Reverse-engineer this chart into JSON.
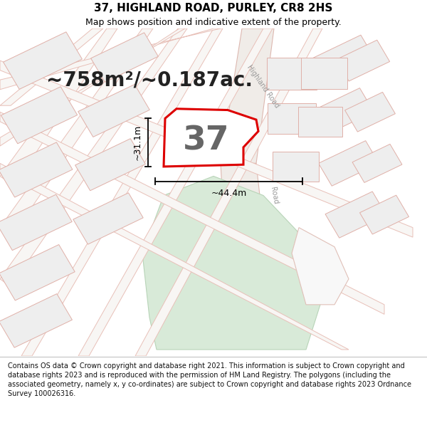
{
  "title": "37, HIGHLAND ROAD, PURLEY, CR8 2HS",
  "subtitle": "Map shows position and indicative extent of the property.",
  "area_text": "~758m²/~0.187ac.",
  "width_label": "~44.4m",
  "height_label": "~31.1m",
  "number_label": "37",
  "footer": "Contains OS data © Crown copyright and database right 2021. This information is subject to Crown copyright and database rights 2023 and is reproduced with the permission of HM Land Registry. The polygons (including the associated geometry, namely x, y co-ordinates) are subject to Crown copyright and database rights 2023 Ordnance Survey 100026316.",
  "map_bg": "#f8f7f5",
  "road_fill": "#f5f0ec",
  "road_edge": "#e8c0b8",
  "block_fill": "#eeeeee",
  "block_edge": "#e0b0a8",
  "property_fill": "#ffffff",
  "property_edge": "#dd0000",
  "green_fill": "#d8ead8",
  "green_edge": "#b8d4b8",
  "white_road": "#f8f8f8",
  "white_road_edge": "#e0c0b8",
  "footer_bg": "#ffffff",
  "title_fontsize": 11,
  "subtitle_fontsize": 9,
  "area_fontsize": 20,
  "number_fontsize": 34,
  "label_fontsize": 9,
  "road_label_fontsize": 7,
  "footer_fontsize": 7.0,
  "map_xlim": [
    0,
    600
  ],
  "map_ylim": [
    0,
    510
  ]
}
